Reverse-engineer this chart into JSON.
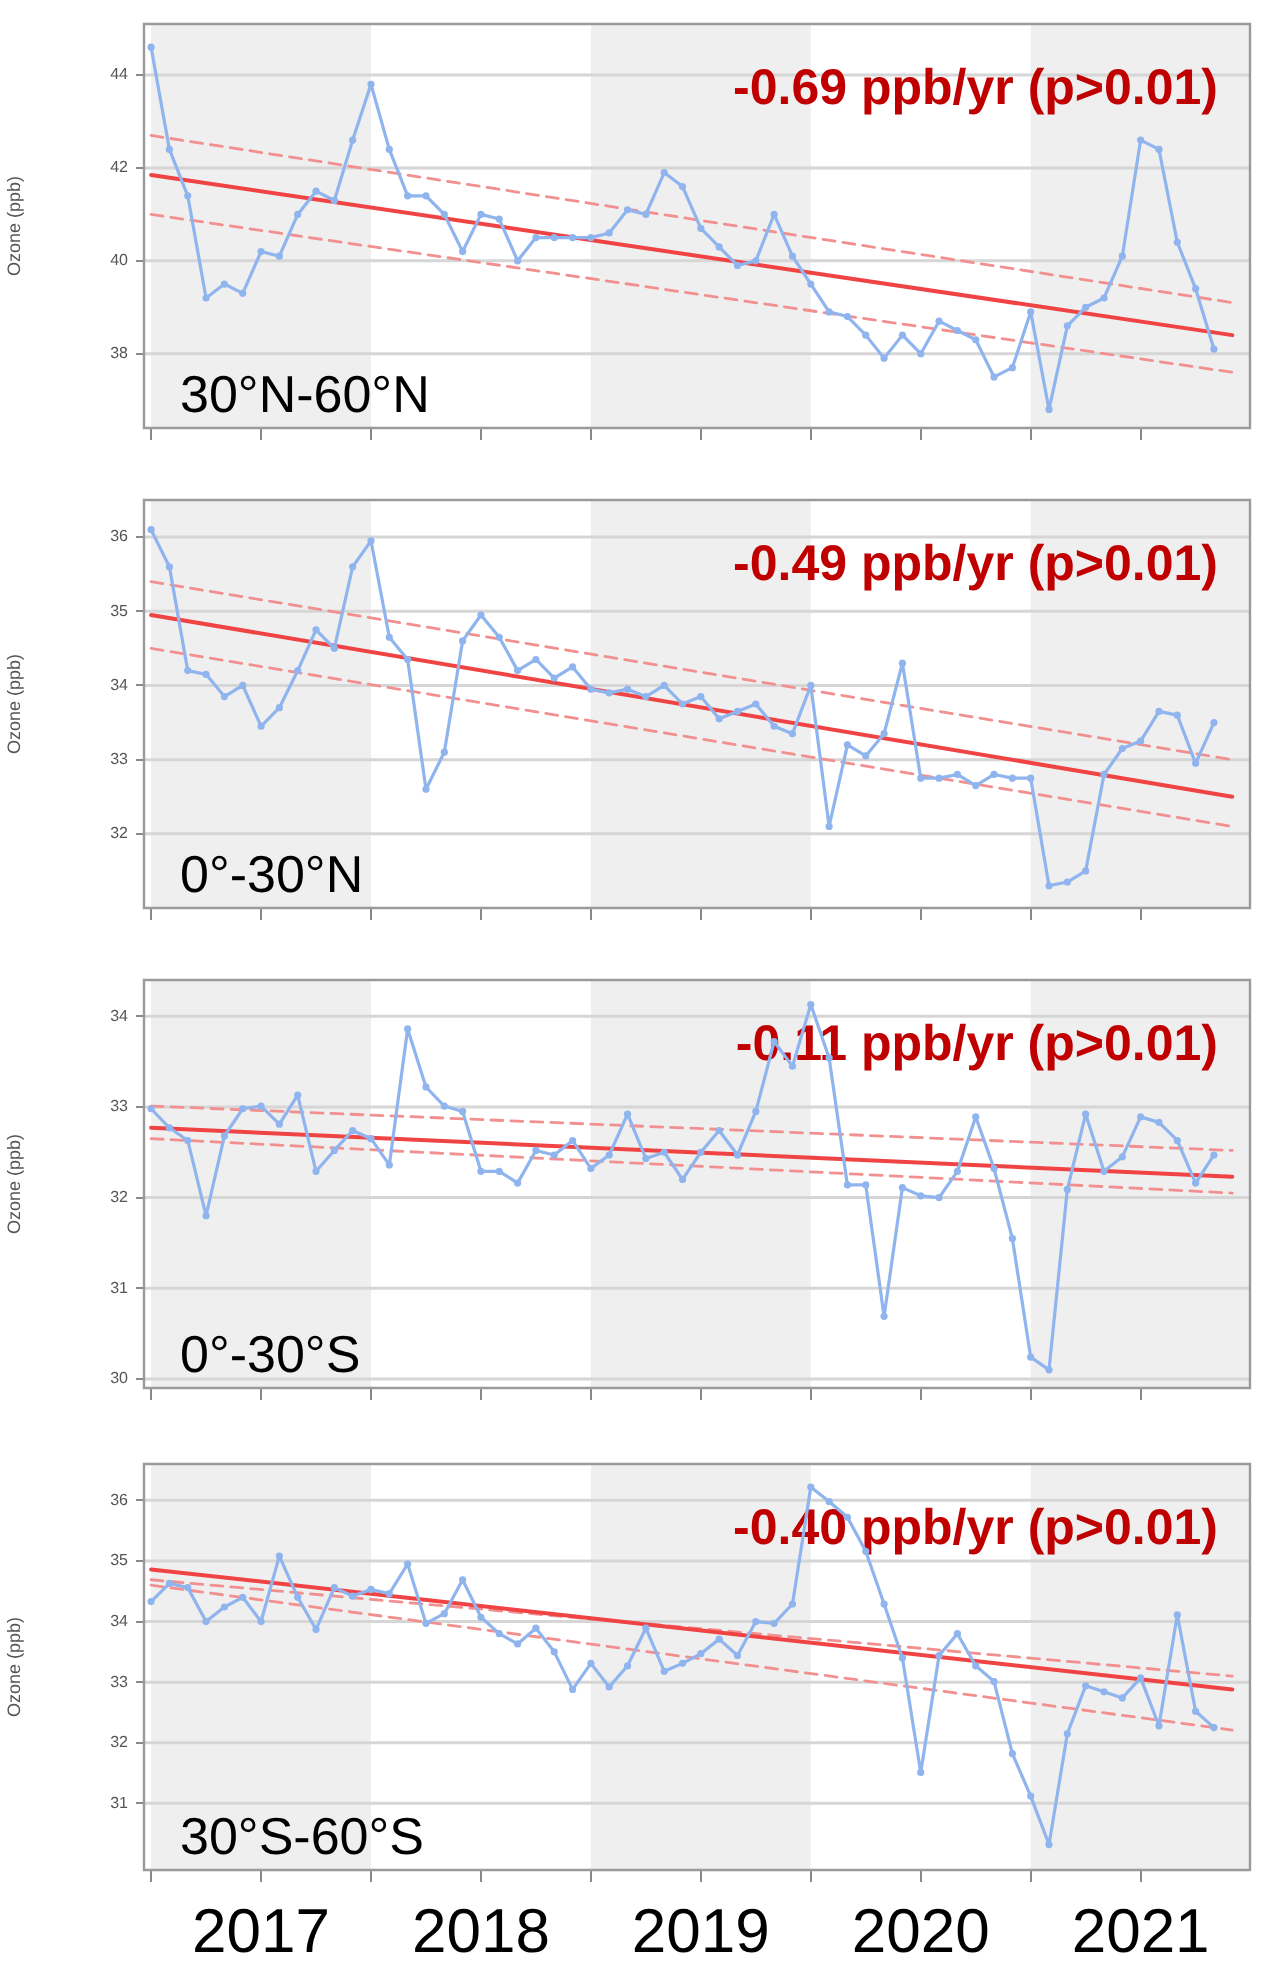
{
  "chart_data": [
    {
      "type": "line",
      "ylabel": "Ozone (ppb)",
      "annotations": [
        "-0.69 ppb/yr (p>0.01)",
        "30°N-60°N"
      ],
      "x": [
        "2017-01",
        "2017-02",
        "2017-03",
        "2017-04",
        "2017-05",
        "2017-06",
        "2017-07",
        "2017-08",
        "2017-09",
        "2017-10",
        "2017-11",
        "2017-12",
        "2018-01",
        "2018-02",
        "2018-03",
        "2018-04",
        "2018-05",
        "2018-06",
        "2018-07",
        "2018-08",
        "2018-09",
        "2018-10",
        "2018-11",
        "2018-12",
        "2019-01",
        "2019-02",
        "2019-03",
        "2019-04",
        "2019-05",
        "2019-06",
        "2019-07",
        "2019-08",
        "2019-09",
        "2019-10",
        "2019-11",
        "2019-12",
        "2020-01",
        "2020-02",
        "2020-03",
        "2020-04",
        "2020-05",
        "2020-06",
        "2020-07",
        "2020-08",
        "2020-09",
        "2020-10",
        "2020-11",
        "2020-12",
        "2021-01",
        "2021-02",
        "2021-03",
        "2021-04",
        "2021-05",
        "2021-06",
        "2021-07",
        "2021-08",
        "2021-09",
        "2021-10",
        "2021-11"
      ],
      "series": [
        {
          "color": "#8fb4ee",
          "values": [
            44.6,
            42.4,
            41.4,
            39.2,
            39.5,
            39.3,
            40.2,
            40.1,
            41.0,
            41.5,
            41.3,
            42.6,
            43.8,
            42.4,
            41.4,
            41.4,
            41.0,
            40.2,
            41.0,
            40.9,
            40.0,
            40.5,
            40.5,
            40.5,
            40.5,
            40.6,
            41.1,
            41.0,
            41.9,
            41.6,
            40.7,
            40.3,
            39.9,
            40.0,
            41.0,
            40.1,
            39.5,
            38.9,
            38.8,
            38.4,
            37.9,
            38.4,
            38.0,
            38.7,
            38.5,
            38.3,
            37.5,
            37.7,
            38.9,
            36.8,
            38.6,
            39.0,
            39.2,
            40.1,
            42.6,
            42.4,
            40.4,
            39.4,
            38.1
          ]
        },
        {
          "type": "line",
          "color": "#f04444",
          "marker": "none",
          "x": [
            "2017-01",
            "2021-12"
          ],
          "values": [
            41.85,
            38.4
          ]
        },
        {
          "type": "line",
          "color": "#f29090",
          "marker": "none",
          "line_style": "dashed",
          "x": [
            "2017-01",
            "2021-12"
          ],
          "values": [
            42.7,
            39.1
          ]
        },
        {
          "type": "line",
          "color": "#f29090",
          "marker": "none",
          "line_style": "dashed",
          "x": [
            "2017-01",
            "2021-12"
          ],
          "values": [
            41.0,
            37.6
          ]
        }
      ],
      "xlim": [
        "2016-12-20",
        "2021-12-31"
      ],
      "ylim": [
        36.4,
        45.1
      ],
      "yticks": [
        38,
        40,
        42,
        44
      ],
      "xticks": [
        {
          "value": "2017-01",
          "label": null
        },
        {
          "value": "2017-07",
          "label": null
        },
        {
          "value": "2018-01",
          "label": null
        },
        {
          "value": "2018-07",
          "label": null
        },
        {
          "value": "2019-01",
          "label": null
        },
        {
          "value": "2019-07",
          "label": null
        },
        {
          "value": "2020-01",
          "label": null
        },
        {
          "value": "2020-07",
          "label": null
        },
        {
          "value": "2021-01",
          "label": null
        },
        {
          "value": "2021-07",
          "label": null
        }
      ],
      "bands": [
        {
          "axis": "x",
          "from": "2017-01",
          "to": "2018-01",
          "color": "#efefef"
        },
        {
          "axis": "x",
          "from": "2019-01",
          "to": "2020-01",
          "color": "#efefef"
        },
        {
          "axis": "x",
          "from": "2021-01",
          "to": "2021-12-31",
          "color": "#efefef"
        }
      ],
      "grid": "y",
      "marker": "circle",
      "line_style": "solid",
      "tick_labels": "y"
    },
    {
      "type": "line",
      "ylabel": "Ozone (ppb)",
      "annotations": [
        "-0.49 ppb/yr (p>0.01)",
        "0°-30°N"
      ],
      "x": [
        "2017-01",
        "2017-02",
        "2017-03",
        "2017-04",
        "2017-05",
        "2017-06",
        "2017-07",
        "2017-08",
        "2017-09",
        "2017-10",
        "2017-11",
        "2017-12",
        "2018-01",
        "2018-02",
        "2018-03",
        "2018-04",
        "2018-05",
        "2018-06",
        "2018-07",
        "2018-08",
        "2018-09",
        "2018-10",
        "2018-11",
        "2018-12",
        "2019-01",
        "2019-02",
        "2019-03",
        "2019-04",
        "2019-05",
        "2019-06",
        "2019-07",
        "2019-08",
        "2019-09",
        "2019-10",
        "2019-11",
        "2019-12",
        "2020-01",
        "2020-02",
        "2020-03",
        "2020-04",
        "2020-05",
        "2020-06",
        "2020-07",
        "2020-08",
        "2020-09",
        "2020-10",
        "2020-11",
        "2020-12",
        "2021-01",
        "2021-02",
        "2021-03",
        "2021-04",
        "2021-05",
        "2021-06",
        "2021-07",
        "2021-08",
        "2021-09",
        "2021-10",
        "2021-11"
      ],
      "series": [
        {
          "color": "#8fb4ee",
          "values": [
            36.1,
            35.6,
            34.2,
            34.15,
            33.85,
            34.0,
            33.45,
            33.7,
            34.2,
            34.75,
            34.5,
            35.6,
            35.95,
            34.65,
            34.35,
            32.6,
            33.1,
            34.6,
            34.95,
            34.65,
            34.2,
            34.35,
            34.1,
            34.25,
            33.95,
            33.9,
            33.95,
            33.85,
            34.0,
            33.75,
            33.85,
            33.55,
            33.65,
            33.75,
            33.45,
            33.35,
            34.0,
            32.1,
            33.2,
            33.05,
            33.35,
            34.3,
            32.75,
            32.75,
            32.8,
            32.65,
            32.8,
            32.75,
            32.75,
            31.3,
            31.35,
            31.5,
            32.8,
            33.15,
            33.25,
            33.65,
            33.6,
            32.95,
            33.5
          ]
        },
        {
          "type": "line",
          "color": "#f04444",
          "marker": "none",
          "x": [
            "2017-01",
            "2021-12"
          ],
          "values": [
            34.95,
            32.5
          ]
        },
        {
          "type": "line",
          "color": "#f29090",
          "marker": "none",
          "line_style": "dashed",
          "x": [
            "2017-01",
            "2021-12"
          ],
          "values": [
            35.4,
            33.0
          ]
        },
        {
          "type": "line",
          "color": "#f29090",
          "marker": "none",
          "line_style": "dashed",
          "x": [
            "2017-01",
            "2021-12"
          ],
          "values": [
            34.5,
            32.1
          ]
        }
      ],
      "xlim": [
        "2016-12-20",
        "2021-12-31"
      ],
      "ylim": [
        31.0,
        36.5
      ],
      "yticks": [
        32,
        33,
        34,
        35,
        36
      ],
      "xticks": [
        {
          "value": "2017-01",
          "label": null
        },
        {
          "value": "2017-07",
          "label": null
        },
        {
          "value": "2018-01",
          "label": null
        },
        {
          "value": "2018-07",
          "label": null
        },
        {
          "value": "2019-01",
          "label": null
        },
        {
          "value": "2019-07",
          "label": null
        },
        {
          "value": "2020-01",
          "label": null
        },
        {
          "value": "2020-07",
          "label": null
        },
        {
          "value": "2021-01",
          "label": null
        },
        {
          "value": "2021-07",
          "label": null
        }
      ],
      "bands": [
        {
          "axis": "x",
          "from": "2017-01",
          "to": "2018-01",
          "color": "#efefef"
        },
        {
          "axis": "x",
          "from": "2019-01",
          "to": "2020-01",
          "color": "#efefef"
        },
        {
          "axis": "x",
          "from": "2021-01",
          "to": "2021-12-31",
          "color": "#efefef"
        }
      ],
      "grid": "y",
      "marker": "circle",
      "line_style": "solid",
      "tick_labels": "y"
    },
    {
      "type": "line",
      "ylabel": "Ozone (ppb)",
      "annotations": [
        "-0.11 ppb/yr (p>0.01)",
        "0°-30°S"
      ],
      "x": [
        "2017-01",
        "2017-02",
        "2017-03",
        "2017-04",
        "2017-05",
        "2017-06",
        "2017-07",
        "2017-08",
        "2017-09",
        "2017-10",
        "2017-11",
        "2017-12",
        "2018-01",
        "2018-02",
        "2018-03",
        "2018-04",
        "2018-05",
        "2018-06",
        "2018-07",
        "2018-08",
        "2018-09",
        "2018-10",
        "2018-11",
        "2018-12",
        "2019-01",
        "2019-02",
        "2019-03",
        "2019-04",
        "2019-05",
        "2019-06",
        "2019-07",
        "2019-08",
        "2019-09",
        "2019-10",
        "2019-11",
        "2019-12",
        "2020-01",
        "2020-02",
        "2020-03",
        "2020-04",
        "2020-05",
        "2020-06",
        "2020-07",
        "2020-08",
        "2020-09",
        "2020-10",
        "2020-11",
        "2020-12",
        "2021-01",
        "2021-02",
        "2021-03",
        "2021-04",
        "2021-05",
        "2021-06",
        "2021-07",
        "2021-08",
        "2021-09",
        "2021-10",
        "2021-11"
      ],
      "series": [
        {
          "color": "#8fb4ee",
          "values": [
            32.98,
            32.77,
            32.63,
            31.8,
            32.68,
            32.98,
            33.01,
            32.81,
            33.13,
            32.29,
            32.52,
            32.74,
            32.65,
            32.36,
            33.86,
            33.22,
            33.01,
            32.95,
            32.29,
            32.29,
            32.16,
            32.52,
            32.47,
            32.63,
            32.32,
            32.47,
            32.92,
            32.43,
            32.5,
            32.2,
            32.5,
            32.74,
            32.47,
            32.95,
            33.72,
            33.45,
            34.13,
            33.54,
            32.14,
            32.14,
            30.69,
            32.11,
            32.02,
            32.0,
            32.29,
            32.89,
            32.32,
            31.55,
            30.24,
            30.1,
            32.09,
            32.92,
            32.29,
            32.45,
            32.89,
            32.83,
            32.63,
            32.16,
            32.47
          ]
        },
        {
          "type": "line",
          "color": "#f04444",
          "marker": "none",
          "x": [
            "2017-01",
            "2021-12"
          ],
          "values": [
            32.77,
            32.23
          ]
        },
        {
          "type": "line",
          "color": "#f29090",
          "marker": "none",
          "line_style": "dashed",
          "x": [
            "2017-01",
            "2021-12"
          ],
          "values": [
            33.01,
            32.52
          ]
        },
        {
          "type": "line",
          "color": "#f29090",
          "marker": "none",
          "line_style": "dashed",
          "x": [
            "2017-01",
            "2021-12"
          ],
          "values": [
            32.65,
            32.05
          ]
        }
      ],
      "xlim": [
        "2016-12-20",
        "2021-12-31"
      ],
      "ylim": [
        29.9,
        34.4
      ],
      "yticks": [
        30,
        31,
        32,
        33,
        34
      ],
      "xticks": [
        {
          "value": "2017-01",
          "label": null
        },
        {
          "value": "2017-07",
          "label": null
        },
        {
          "value": "2018-01",
          "label": null
        },
        {
          "value": "2018-07",
          "label": null
        },
        {
          "value": "2019-01",
          "label": null
        },
        {
          "value": "2019-07",
          "label": null
        },
        {
          "value": "2020-01",
          "label": null
        },
        {
          "value": "2020-07",
          "label": null
        },
        {
          "value": "2021-01",
          "label": null
        },
        {
          "value": "2021-07",
          "label": null
        }
      ],
      "bands": [
        {
          "axis": "x",
          "from": "2017-01",
          "to": "2018-01",
          "color": "#efefef"
        },
        {
          "axis": "x",
          "from": "2019-01",
          "to": "2020-01",
          "color": "#efefef"
        },
        {
          "axis": "x",
          "from": "2021-01",
          "to": "2021-12-31",
          "color": "#efefef"
        }
      ],
      "grid": "y",
      "marker": "circle",
      "line_style": "solid",
      "tick_labels": "y"
    },
    {
      "type": "line",
      "ylabel": "Ozone (ppb)",
      "annotations": [
        "-0.40 ppb/yr (p>0.01)",
        "30°S-60°S"
      ],
      "x": [
        "2017-01",
        "2017-02",
        "2017-03",
        "2017-04",
        "2017-05",
        "2017-06",
        "2017-07",
        "2017-08",
        "2017-09",
        "2017-10",
        "2017-11",
        "2017-12",
        "2018-01",
        "2018-02",
        "2018-03",
        "2018-04",
        "2018-05",
        "2018-06",
        "2018-07",
        "2018-08",
        "2018-09",
        "2018-10",
        "2018-11",
        "2018-12",
        "2019-01",
        "2019-02",
        "2019-03",
        "2019-04",
        "2019-05",
        "2019-06",
        "2019-07",
        "2019-08",
        "2019-09",
        "2019-10",
        "2019-11",
        "2019-12",
        "2020-01",
        "2020-02",
        "2020-03",
        "2020-04",
        "2020-05",
        "2020-06",
        "2020-07",
        "2020-08",
        "2020-09",
        "2020-10",
        "2020-11",
        "2020-12",
        "2021-01",
        "2021-02",
        "2021-03",
        "2021-04",
        "2021-05",
        "2021-06",
        "2021-07",
        "2021-08",
        "2021-09",
        "2021-10",
        "2021-11"
      ],
      "series": [
        {
          "color": "#8fb4ee",
          "values": [
            34.33,
            34.63,
            34.56,
            34.0,
            34.24,
            34.4,
            34.0,
            35.08,
            34.4,
            33.87,
            34.56,
            34.42,
            34.53,
            34.46,
            34.95,
            33.97,
            34.13,
            34.69,
            34.07,
            33.8,
            33.63,
            33.89,
            33.5,
            32.88,
            33.31,
            32.92,
            33.27,
            33.89,
            33.18,
            33.31,
            33.47,
            33.71,
            33.44,
            34.0,
            33.97,
            34.29,
            36.22,
            35.98,
            35.72,
            35.16,
            34.29,
            33.4,
            31.51,
            33.44,
            33.8,
            33.27,
            33.01,
            31.82,
            31.12,
            30.32,
            32.15,
            32.94,
            32.84,
            32.74,
            33.07,
            32.28,
            34.11,
            32.52,
            32.25
          ]
        },
        {
          "type": "line",
          "color": "#f04444",
          "marker": "none",
          "x": [
            "2017-01",
            "2021-12"
          ],
          "values": [
            34.86,
            32.88
          ]
        },
        {
          "type": "line",
          "color": "#f29090",
          "marker": "none",
          "line_style": "dashed",
          "x": [
            "2017-01",
            "2021-12"
          ],
          "values": [
            34.69,
            33.1
          ]
        },
        {
          "type": "line",
          "color": "#f29090",
          "marker": "none",
          "line_style": "dashed",
          "x": [
            "2017-01",
            "2021-12"
          ],
          "values": [
            34.6,
            32.21
          ]
        }
      ],
      "xlim": [
        "2016-12-20",
        "2021-12-31"
      ],
      "ylim": [
        29.9,
        36.6
      ],
      "yticks": [
        31,
        32,
        33,
        34,
        35,
        36
      ],
      "xticks": [
        {
          "value": "2017-01",
          "label": null
        },
        {
          "value": "2017-07",
          "label": "2017"
        },
        {
          "value": "2018-01",
          "label": null
        },
        {
          "value": "2018-07",
          "label": "2018"
        },
        {
          "value": "2019-01",
          "label": null
        },
        {
          "value": "2019-07",
          "label": "2019"
        },
        {
          "value": "2020-01",
          "label": null
        },
        {
          "value": "2020-07",
          "label": "2020"
        },
        {
          "value": "2021-01",
          "label": null
        },
        {
          "value": "2021-07",
          "label": "2021"
        }
      ],
      "bands": [
        {
          "axis": "x",
          "from": "2017-01",
          "to": "2018-01",
          "color": "#efefef"
        },
        {
          "axis": "x",
          "from": "2019-01",
          "to": "2020-01",
          "color": "#efefef"
        },
        {
          "axis": "x",
          "from": "2021-01",
          "to": "2021-12-31",
          "color": "#efefef"
        }
      ],
      "grid": "y",
      "marker": "circle",
      "line_style": "solid"
    }
  ]
}
